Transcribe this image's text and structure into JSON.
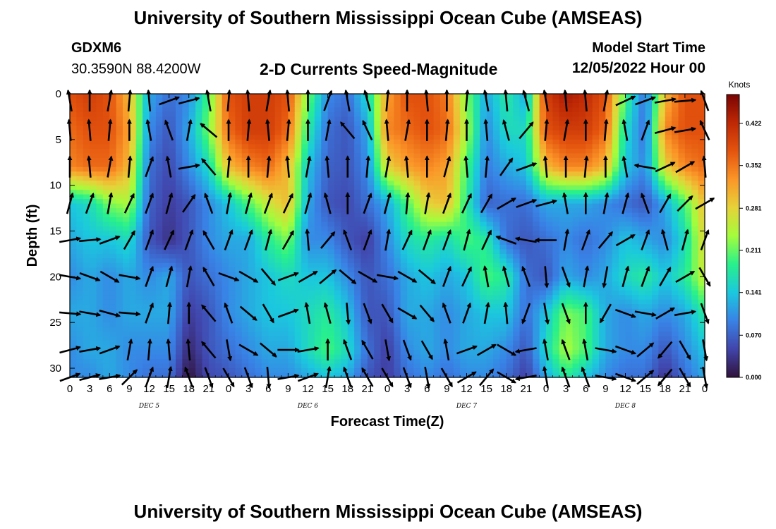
{
  "header": {
    "title": "University of Southern Mississippi Ocean Cube (AMSEAS)",
    "station": "GDXM6",
    "location": "30.3590N  88.4200W",
    "subtitle": "2-D Currents Speed-Magnitude",
    "model_start_label": "Model Start Time",
    "model_start_value": "12/05/2022 Hour 00"
  },
  "footer": {
    "title": "University of Southern Mississippi Ocean Cube (AMSEAS)"
  },
  "chart_data": {
    "type": "heatmap",
    "title": "2-D Currents Speed-Magnitude",
    "xlabel": "Forecast Time(Z)",
    "ylabel": "Depth (ft)",
    "xlim": [
      0,
      96
    ],
    "ylim": [
      0,
      31
    ],
    "x_ticks": [
      0,
      3,
      6,
      9,
      12,
      15,
      18,
      21,
      24,
      27,
      30,
      33,
      36,
      39,
      42,
      45,
      48,
      51,
      54,
      57,
      60,
      63,
      66,
      69,
      72,
      75,
      78,
      81,
      84,
      87,
      90,
      93,
      96
    ],
    "x_tick_labels": [
      "0",
      "3",
      "6",
      "9",
      "12",
      "15",
      "18",
      "21",
      "0",
      "3",
      "6",
      "9",
      "12",
      "15",
      "18",
      "21",
      "0",
      "3",
      "6",
      "9",
      "12",
      "15",
      "18",
      "21",
      "0",
      "3",
      "6",
      "9",
      "12",
      "15",
      "18",
      "21",
      "0"
    ],
    "y_ticks": [
      0,
      5,
      10,
      15,
      20,
      25,
      30
    ],
    "y_tick_labels": [
      "0",
      "5",
      "10",
      "15",
      "20",
      "25",
      "30"
    ],
    "day_labels": [
      {
        "hour": 12,
        "label": "DEC 5"
      },
      {
        "hour": 36,
        "label": "DEC 6"
      },
      {
        "hour": 60,
        "label": "DEC 7"
      },
      {
        "hour": 84,
        "label": "DEC 8"
      }
    ],
    "colorbar": {
      "units": "Knots",
      "min": 0.0,
      "max": 0.47,
      "ticks": [
        0.0,
        0.07,
        0.141,
        0.211,
        0.281,
        0.352,
        0.422
      ],
      "tick_labels": [
        "0.000",
        "0.070",
        "0.141",
        "0.211",
        "0.281",
        "0.352",
        "0.422"
      ]
    },
    "speed_grid": {
      "hours": [
        0,
        3,
        6,
        9,
        12,
        15,
        18,
        21,
        24,
        27,
        30,
        33,
        36,
        39,
        42,
        45,
        48,
        51,
        54,
        57,
        60,
        63,
        66,
        69,
        72,
        75,
        78,
        81,
        84,
        87,
        90,
        93,
        96
      ],
      "depths": [
        0,
        4,
        8,
        12,
        16,
        20,
        24,
        28,
        31
      ],
      "values": [
        [
          0.38,
          0.4,
          0.38,
          0.3,
          0.12,
          0.08,
          0.1,
          0.2,
          0.38,
          0.4,
          0.4,
          0.38,
          0.22,
          0.1,
          0.08,
          0.16,
          0.32,
          0.38,
          0.38,
          0.35,
          0.22,
          0.12,
          0.18,
          0.12,
          0.4,
          0.44,
          0.42,
          0.38,
          0.2,
          0.08,
          0.3,
          0.38,
          0.38
        ],
        [
          0.36,
          0.38,
          0.38,
          0.32,
          0.1,
          0.06,
          0.12,
          0.22,
          0.36,
          0.4,
          0.4,
          0.36,
          0.18,
          0.08,
          0.06,
          0.12,
          0.34,
          0.36,
          0.38,
          0.36,
          0.24,
          0.1,
          0.16,
          0.16,
          0.38,
          0.4,
          0.4,
          0.36,
          0.16,
          0.08,
          0.34,
          0.38,
          0.38
        ],
        [
          0.34,
          0.36,
          0.36,
          0.3,
          0.08,
          0.05,
          0.1,
          0.16,
          0.3,
          0.34,
          0.36,
          0.3,
          0.14,
          0.07,
          0.06,
          0.1,
          0.28,
          0.32,
          0.34,
          0.32,
          0.2,
          0.09,
          0.12,
          0.14,
          0.3,
          0.34,
          0.34,
          0.3,
          0.14,
          0.1,
          0.28,
          0.34,
          0.36
        ],
        [
          0.14,
          0.16,
          0.22,
          0.24,
          0.07,
          0.04,
          0.06,
          0.1,
          0.14,
          0.2,
          0.26,
          0.3,
          0.12,
          0.06,
          0.05,
          0.08,
          0.12,
          0.2,
          0.28,
          0.3,
          0.18,
          0.07,
          0.08,
          0.08,
          0.12,
          0.12,
          0.12,
          0.1,
          0.08,
          0.06,
          0.12,
          0.2,
          0.3
        ],
        [
          0.12,
          0.14,
          0.14,
          0.16,
          0.06,
          0.03,
          0.06,
          0.1,
          0.12,
          0.12,
          0.18,
          0.22,
          0.1,
          0.1,
          0.06,
          0.04,
          0.1,
          0.16,
          0.18,
          0.16,
          0.2,
          0.18,
          0.08,
          0.06,
          0.08,
          0.1,
          0.08,
          0.1,
          0.14,
          0.12,
          0.1,
          0.16,
          0.28
        ],
        [
          0.1,
          0.12,
          0.1,
          0.12,
          0.1,
          0.12,
          0.06,
          0.08,
          0.1,
          0.12,
          0.14,
          0.16,
          0.14,
          0.14,
          0.1,
          0.06,
          0.08,
          0.12,
          0.14,
          0.12,
          0.14,
          0.2,
          0.18,
          0.08,
          0.06,
          0.12,
          0.1,
          0.12,
          0.16,
          0.18,
          0.14,
          0.18,
          0.26
        ],
        [
          0.12,
          0.12,
          0.1,
          0.12,
          0.12,
          0.12,
          0.04,
          0.06,
          0.1,
          0.12,
          0.14,
          0.14,
          0.16,
          0.18,
          0.14,
          0.06,
          0.06,
          0.12,
          0.12,
          0.1,
          0.12,
          0.14,
          0.14,
          0.08,
          0.14,
          0.22,
          0.2,
          0.12,
          0.1,
          0.12,
          0.1,
          0.12,
          0.18
        ],
        [
          0.1,
          0.12,
          0.12,
          0.1,
          0.1,
          0.1,
          0.02,
          0.06,
          0.08,
          0.1,
          0.12,
          0.12,
          0.16,
          0.2,
          0.16,
          0.08,
          0.04,
          0.1,
          0.12,
          0.1,
          0.12,
          0.12,
          0.1,
          0.06,
          0.16,
          0.24,
          0.2,
          0.12,
          0.1,
          0.1,
          0.06,
          0.1,
          0.14
        ],
        [
          0.1,
          0.1,
          0.12,
          0.1,
          0.08,
          0.08,
          0.0,
          0.05,
          0.06,
          0.08,
          0.1,
          0.1,
          0.12,
          0.14,
          0.12,
          0.06,
          0.04,
          0.08,
          0.1,
          0.08,
          0.1,
          0.1,
          0.08,
          0.04,
          0.12,
          0.18,
          0.14,
          0.1,
          0.08,
          0.08,
          0.03,
          0.08,
          0.12
        ]
      ]
    },
    "vectors": {
      "hours": [
        0,
        3,
        6,
        9,
        12,
        15,
        18,
        21,
        24,
        27,
        30,
        33,
        36,
        39,
        42,
        45,
        48,
        51,
        54,
        57,
        60,
        63,
        66,
        69,
        72,
        75,
        78,
        81,
        84,
        87,
        90,
        93,
        96
      ],
      "depths": [
        0,
        4,
        8,
        12,
        16,
        20,
        24,
        28,
        31
      ],
      "direction_deg": [
        [
          -10,
          0,
          10,
          5,
          -5,
          70,
          75,
          -10,
          5,
          -5,
          10,
          -5,
          0,
          20,
          -10,
          -15,
          5,
          0,
          -5,
          0,
          5,
          -10,
          -5,
          -15,
          -10,
          -5,
          -5,
          10,
          65,
          70,
          80,
          85,
          -20
        ],
        [
          -5,
          -5,
          5,
          0,
          -10,
          -20,
          10,
          -50,
          0,
          5,
          -5,
          5,
          0,
          10,
          -40,
          -25,
          -5,
          10,
          0,
          5,
          0,
          -5,
          -15,
          40,
          5,
          10,
          0,
          5,
          -10,
          20,
          75,
          80,
          -25
        ],
        [
          0,
          -5,
          10,
          5,
          20,
          -10,
          80,
          -40,
          5,
          0,
          5,
          -5,
          10,
          -5,
          0,
          5,
          10,
          -5,
          0,
          15,
          -5,
          5,
          35,
          70,
          -5,
          0,
          5,
          0,
          -10,
          -80,
          65,
          60,
          -5
        ],
        [
          15,
          20,
          10,
          25,
          20,
          15,
          35,
          -20,
          10,
          15,
          20,
          25,
          15,
          -15,
          0,
          20,
          15,
          5,
          10,
          20,
          25,
          30,
          60,
          70,
          75,
          -10,
          0,
          10,
          15,
          -20,
          30,
          45,
          60
        ],
        [
          80,
          85,
          70,
          30,
          20,
          25,
          20,
          -30,
          20,
          20,
          15,
          30,
          -5,
          40,
          -20,
          20,
          10,
          25,
          20,
          20,
          15,
          25,
          -70,
          -80,
          -90,
          10,
          20,
          40,
          60,
          20,
          -15,
          15,
          20
        ],
        [
          100,
          110,
          120,
          100,
          20,
          15,
          10,
          -30,
          110,
          120,
          140,
          70,
          60,
          50,
          130,
          120,
          100,
          120,
          130,
          20,
          25,
          -10,
          -15,
          -20,
          175,
          160,
          10,
          -170,
          15,
          20,
          30,
          60,
          150
        ],
        [
          95,
          100,
          105,
          95,
          20,
          5,
          0,
          -40,
          -20,
          130,
          150,
          70,
          -10,
          -15,
          175,
          160,
          150,
          120,
          140,
          -20,
          20,
          10,
          -5,
          -160,
          170,
          160,
          0,
          -150,
          110,
          100,
          60,
          80,
          160
        ],
        [
          75,
          80,
          70,
          10,
          5,
          -5,
          -5,
          -40,
          170,
          120,
          130,
          90,
          80,
          0,
          -20,
          -30,
          170,
          160,
          150,
          -10,
          70,
          60,
          120,
          -100,
          -10,
          -20,
          -10,
          100,
          110,
          50,
          -140,
          150,
          170
        ],
        [
          70,
          75,
          80,
          45,
          20,
          10,
          -20,
          160,
          150,
          160,
          175,
          80,
          70,
          10,
          -20,
          -30,
          150,
          160,
          170,
          150,
          60,
          40,
          120,
          -100,
          -10,
          -20,
          -20,
          100,
          110,
          50,
          -140,
          150,
          170
        ]
      ]
    }
  }
}
